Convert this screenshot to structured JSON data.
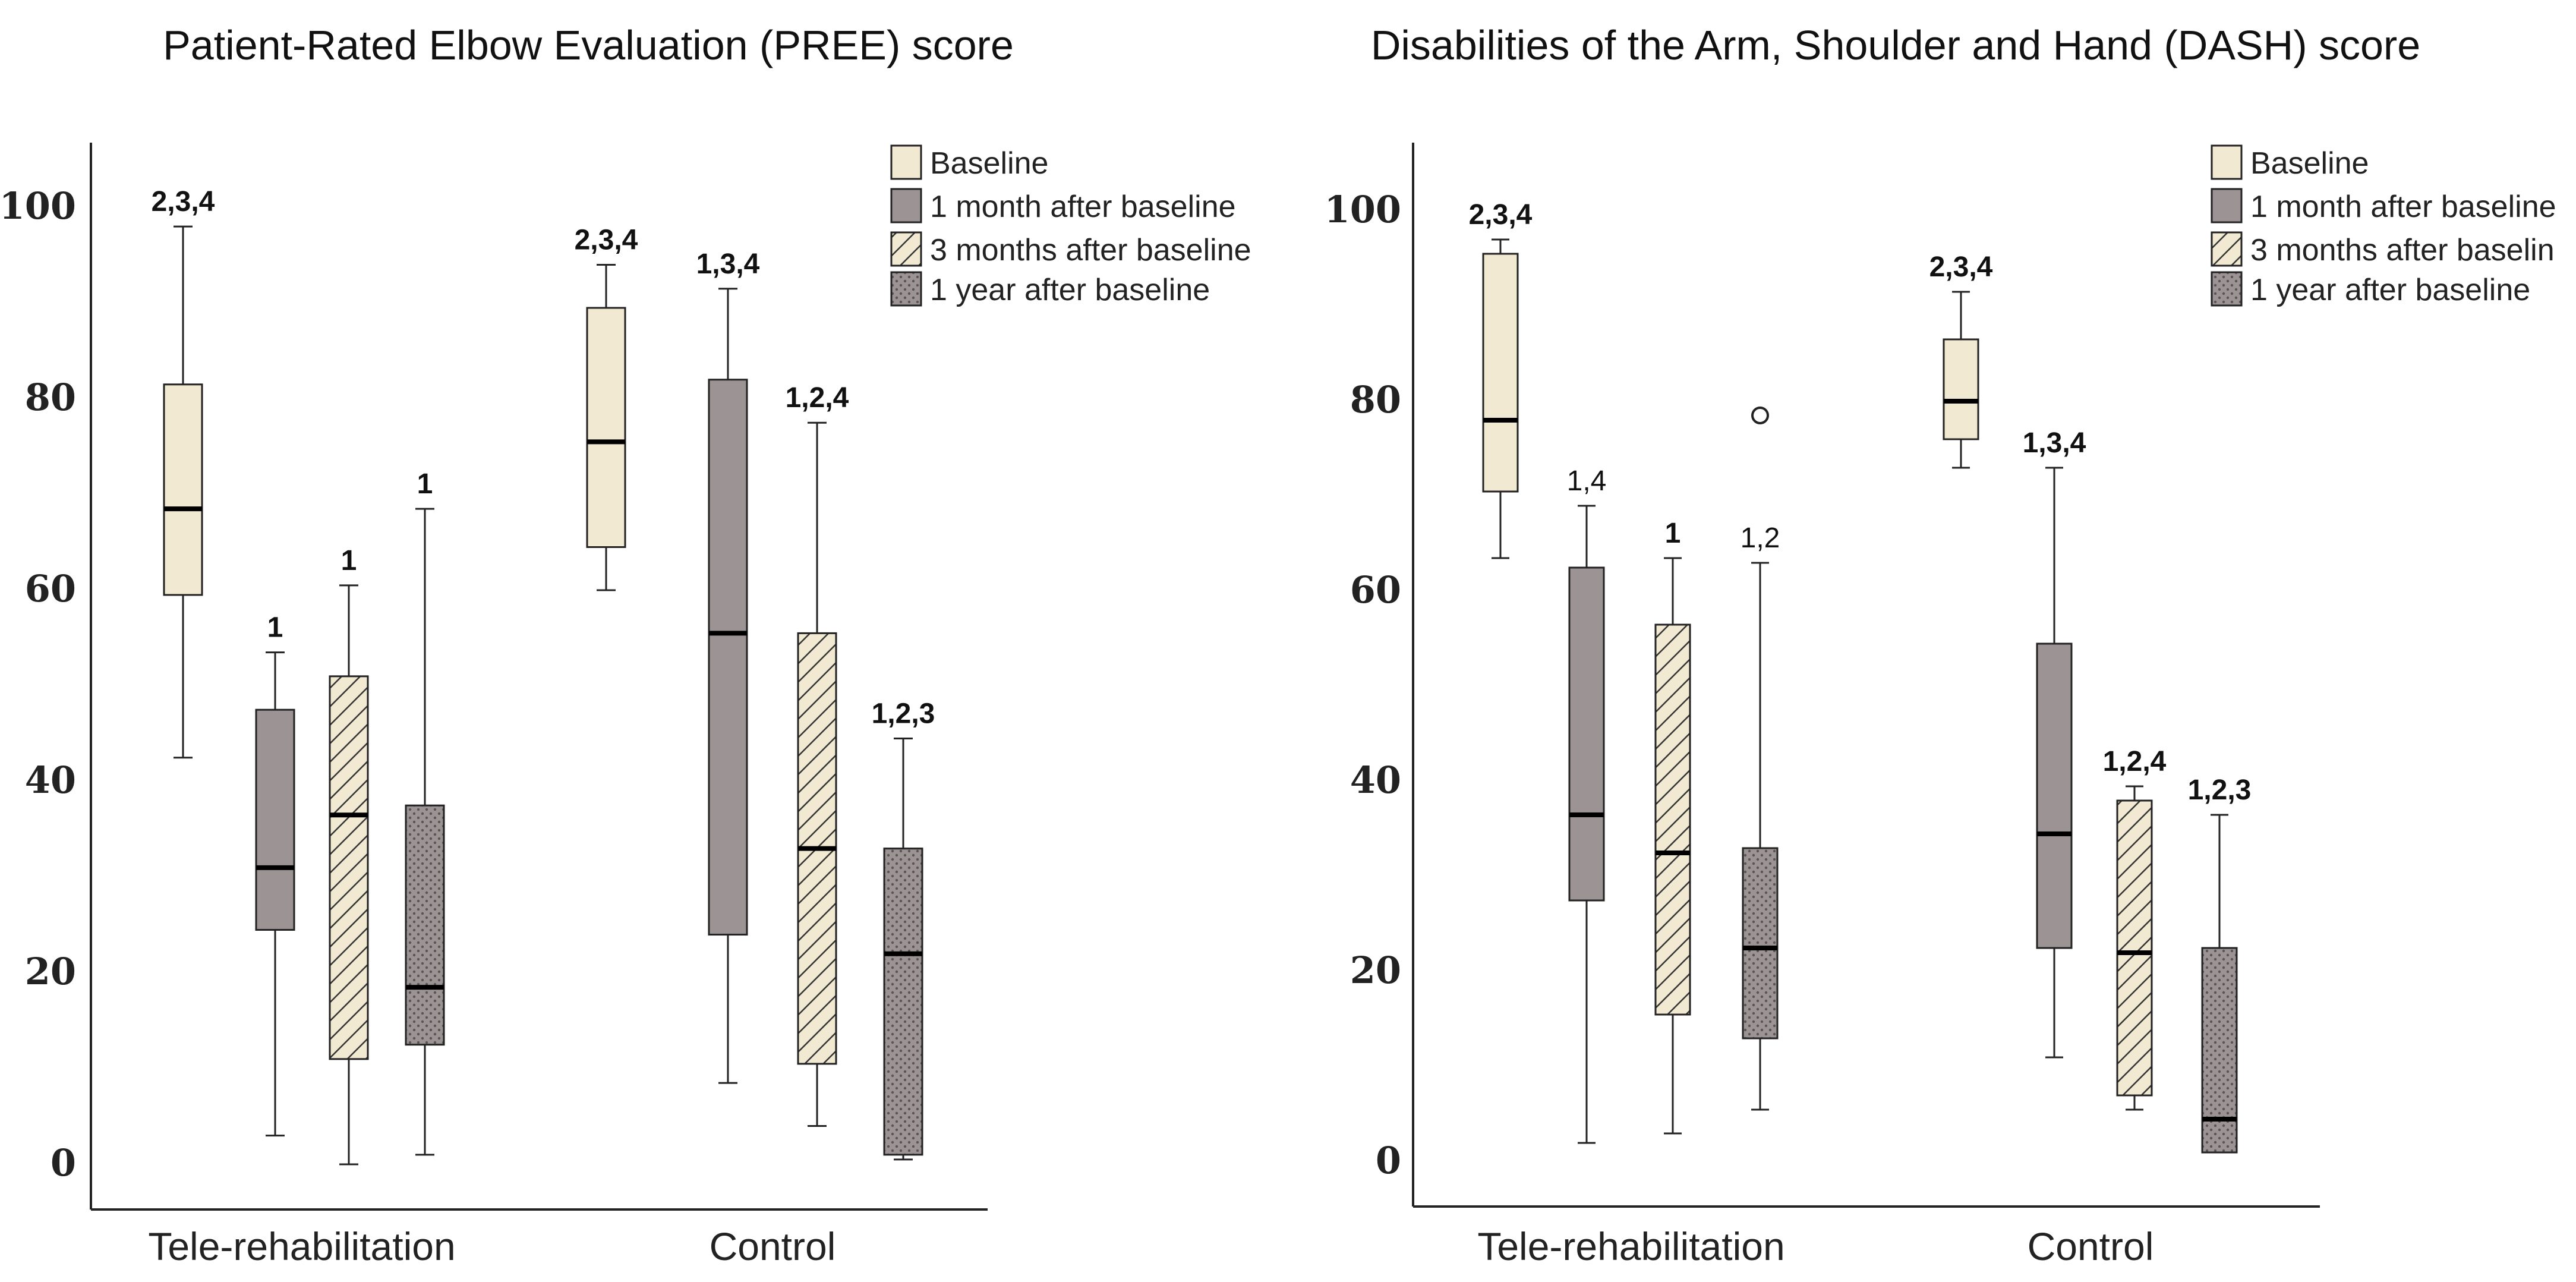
{
  "colors": {
    "baseline_fill": "#F1E9D2",
    "one_month_fill": "#9C9494",
    "three_month_fill": "#F1E9D2",
    "one_year_fill": "#9C9494",
    "stroke": "#222222"
  },
  "chart_data": [
    {
      "type": "box",
      "title": "Patient-Rated Elbow Evaluation (PREE) score",
      "ylim": [
        -4,
        106
      ],
      "yticks": [
        0,
        20,
        40,
        60,
        80,
        100
      ],
      "categories": [
        "Tele-rehabilitation",
        "Control"
      ],
      "legend": [
        "Baseline",
        "1 month after baseline",
        "3 months after baseline",
        "1 year after baseline"
      ],
      "legend_position": "top-right",
      "series": [
        {
          "name": "Baseline",
          "pattern": "plain",
          "boxes": [
            {
              "group": "Tele-rehabilitation",
              "min": 43,
              "q1": 60,
              "median": 69,
              "q3": 82,
              "max": 98.5,
              "label": "2,3,4",
              "outliers": []
            },
            {
              "group": "Control",
              "min": 60.5,
              "q1": 65,
              "median": 76,
              "q3": 90,
              "max": 94.5,
              "label": "2,3,4",
              "outliers": []
            }
          ]
        },
        {
          "name": "1 month after baseline",
          "pattern": "solid-gray",
          "boxes": [
            {
              "group": "Tele-rehabilitation",
              "min": 3.5,
              "q1": 25,
              "median": 31.5,
              "q3": 48,
              "max": 54,
              "label": "1",
              "outliers": []
            },
            {
              "group": "Control",
              "min": 9,
              "q1": 24.5,
              "median": 56,
              "q3": 82.5,
              "max": 92,
              "label": "1,3,4",
              "outliers": []
            }
          ]
        },
        {
          "name": "3 months after baseline",
          "pattern": "hatch",
          "boxes": [
            {
              "group": "Tele-rehabilitation",
              "min": 0.5,
              "q1": 11.5,
              "median": 37,
              "q3": 51.5,
              "max": 61,
              "label": "1",
              "outliers": []
            },
            {
              "group": "Control",
              "min": 4.5,
              "q1": 11,
              "median": 33.5,
              "q3": 56,
              "max": 78,
              "label": "1,2,4",
              "outliers": []
            }
          ]
        },
        {
          "name": "1 year after baseline",
          "pattern": "dotted-gray",
          "boxes": [
            {
              "group": "Tele-rehabilitation",
              "min": 1.5,
              "q1": 13,
              "median": 19,
              "q3": 38,
              "max": 69,
              "label": "1",
              "outliers": []
            },
            {
              "group": "Control",
              "min": 1,
              "q1": 1.5,
              "median": 22.5,
              "q3": 33.5,
              "max": 45,
              "label": "1,2,3",
              "outliers": []
            }
          ]
        }
      ]
    },
    {
      "type": "box",
      "title": "Disabilities of the Arm, Shoulder and Hand (DASH) score",
      "ylim": [
        -4,
        106
      ],
      "yticks": [
        0,
        20,
        40,
        60,
        80,
        100
      ],
      "categories": [
        "Tele-rehabilitation",
        "Control"
      ],
      "legend": [
        "Baseline",
        "1 month after baseline",
        "3 months after baselin",
        "1 year after baseline"
      ],
      "legend_position": "top-right",
      "series": [
        {
          "name": "Baseline",
          "pattern": "plain",
          "boxes": [
            {
              "group": "Tele-rehabilitation",
              "min": 64,
              "q1": 71,
              "median": 78.5,
              "q3": 96,
              "max": 97.5,
              "label": "2,3,4",
              "outliers": []
            },
            {
              "group": "Control",
              "min": 73.5,
              "q1": 76.5,
              "median": 80.5,
              "q3": 87,
              "max": 92,
              "label": "2,3,4",
              "outliers": []
            }
          ]
        },
        {
          "name": "1 month after baseline",
          "pattern": "solid-gray",
          "boxes": [
            {
              "group": "Tele-rehabilitation",
              "min": 2.5,
              "q1": 28,
              "median": 37,
              "q3": 63,
              "max": 69.5,
              "label": "1,4",
              "outliers": []
            },
            {
              "group": "Control",
              "min": 11.5,
              "q1": 23,
              "median": 35,
              "q3": 55,
              "max": 73.5,
              "label": "1,3,4",
              "outliers": []
            }
          ]
        },
        {
          "name": "3 months after baseline",
          "pattern": "hatch",
          "boxes": [
            {
              "group": "Tele-rehabilitation",
              "min": 3.5,
              "q1": 16,
              "median": 33,
              "q3": 57,
              "max": 64,
              "label": "1",
              "outliers": []
            },
            {
              "group": "Control",
              "min": 6,
              "q1": 7.5,
              "median": 22.5,
              "q3": 38.5,
              "max": 40,
              "label": "1,2,4",
              "outliers": []
            }
          ]
        },
        {
          "name": "1 year after baseline",
          "pattern": "dotted-gray",
          "boxes": [
            {
              "group": "Tele-rehabilitation",
              "min": 6,
              "q1": 13.5,
              "median": 23,
              "q3": 33.5,
              "max": 63.5,
              "label": "1,2",
              "outliers": [
                79
              ]
            },
            {
              "group": "Control",
              "min": 1.5,
              "q1": 1.5,
              "median": 5,
              "q3": 23,
              "max": 37,
              "label": "1,2,3",
              "outliers": []
            }
          ]
        }
      ]
    }
  ]
}
